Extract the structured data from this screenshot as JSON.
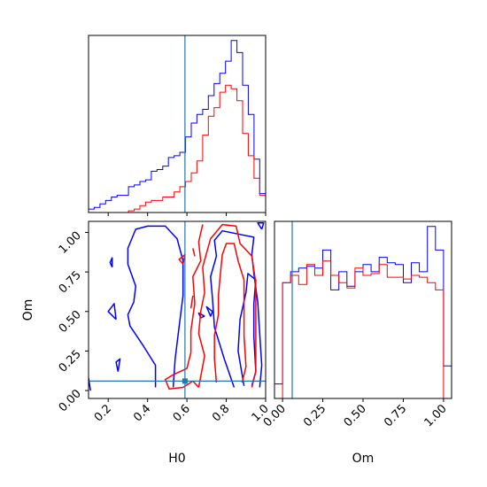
{
  "chart_data": [
    {
      "panel": "H0 marginal",
      "type": "histogram",
      "x_range": [
        0.1,
        1.0
      ],
      "x_ticks": [
        0.2,
        0.4,
        0.6,
        0.8,
        1.0
      ],
      "y_ticks": [],
      "truth": 0.59,
      "colors": {
        "blue": "#0000ff",
        "red": "#ff0000",
        "truth": "#1f77b4"
      },
      "bin_edges": [
        0.1,
        0.129,
        0.158,
        0.187,
        0.216,
        0.245,
        0.274,
        0.303,
        0.332,
        0.361,
        0.39,
        0.419,
        0.448,
        0.477,
        0.506,
        0.535,
        0.564,
        0.593,
        0.622,
        0.651,
        0.68,
        0.709,
        0.738,
        0.767,
        0.796,
        0.825,
        0.854,
        0.883,
        0.912,
        0.941,
        0.97,
        1.0
      ],
      "series": [
        {
          "color": "blue",
          "values": [
            0.02,
            0.03,
            0.05,
            0.07,
            0.09,
            0.1,
            0.1,
            0.15,
            0.16,
            0.18,
            0.19,
            0.24,
            0.25,
            0.27,
            0.32,
            0.33,
            0.35,
            0.44,
            0.52,
            0.57,
            0.6,
            0.68,
            0.75,
            0.81,
            0.88,
            1.0,
            0.93,
            0.74,
            0.57,
            0.31,
            0.11
          ]
        },
        {
          "color": "red",
          "values": [
            0,
            0,
            0,
            0,
            0,
            0,
            0,
            0.01,
            0.02,
            0.04,
            0.06,
            0.07,
            0.07,
            0.09,
            0.09,
            0.12,
            0.15,
            0.18,
            0.23,
            0.3,
            0.45,
            0.56,
            0.61,
            0.7,
            0.74,
            0.72,
            0.65,
            0.46,
            0.33,
            0.2,
            0.1
          ]
        }
      ]
    },
    {
      "panel": "H0 vs Om",
      "type": "contour",
      "x_range": [
        0.1,
        1.0
      ],
      "y_range": [
        -0.05,
        1.07
      ],
      "x_ticks": [
        0.2,
        0.4,
        0.6,
        0.8,
        1.0
      ],
      "y_ticks": [
        0.0,
        0.25,
        0.5,
        0.75,
        1.0
      ],
      "xlabel": "H0",
      "ylabel": "Om",
      "truth": {
        "x": 0.59,
        "y": 0.06
      },
      "contours": [
        {
          "color": "blue",
          "points": [
            [
              0.44,
              0.02
            ],
            [
              0.44,
              0.16
            ],
            [
              0.38,
              0.28
            ],
            [
              0.31,
              0.41
            ],
            [
              0.3,
              0.48
            ],
            [
              0.33,
              0.56
            ],
            [
              0.34,
              0.66
            ],
            [
              0.3,
              0.8
            ],
            [
              0.3,
              0.9
            ],
            [
              0.34,
              1.02
            ],
            [
              0.4,
              1.04
            ],
            [
              0.49,
              1.04
            ],
            [
              0.55,
              0.96
            ],
            [
              0.58,
              0.82
            ],
            [
              0.58,
              0.6
            ],
            [
              0.56,
              0.4
            ],
            [
              0.54,
              0.2
            ],
            [
              0.53,
              0.02
            ]
          ]
        },
        {
          "color": "blue",
          "points": [
            [
              0.84,
              0.02
            ],
            [
              0.79,
              0.2
            ],
            [
              0.74,
              0.4
            ],
            [
              0.73,
              0.58
            ],
            [
              0.72,
              0.72
            ],
            [
              0.75,
              0.85
            ],
            [
              0.74,
              0.95
            ],
            [
              0.78,
              1.01
            ],
            [
              0.86,
              0.99
            ],
            [
              0.94,
              0.97
            ],
            [
              0.93,
              0.86
            ],
            [
              0.94,
              0.74
            ],
            [
              0.96,
              0.56
            ],
            [
              0.97,
              0.36
            ],
            [
              0.98,
              0.16
            ],
            [
              0.97,
              0.02
            ]
          ]
        },
        {
          "color": "blue",
          "points": [
            [
              0.89,
              0.03
            ],
            [
              0.86,
              0.25
            ],
            [
              0.87,
              0.45
            ],
            [
              0.9,
              0.62
            ],
            [
              0.91,
              0.74
            ],
            [
              0.95,
              0.7
            ],
            [
              0.94,
              0.55
            ],
            [
              0.94,
              0.34
            ],
            [
              0.95,
              0.12
            ],
            [
              0.93,
              0.03
            ]
          ]
        },
        {
          "color": "blue",
          "points": [
            [
              0.24,
              0.45
            ],
            [
              0.2,
              0.5
            ],
            [
              0.23,
              0.55
            ],
            [
              0.24,
              0.45
            ]
          ]
        },
        {
          "color": "blue",
          "points": [
            [
              0.22,
              0.78
            ],
            [
              0.22,
              0.84
            ],
            [
              0.21,
              0.81
            ],
            [
              0.22,
              0.78
            ]
          ]
        },
        {
          "color": "blue",
          "points": [
            [
              0.25,
              0.12
            ],
            [
              0.26,
              0.2
            ],
            [
              0.24,
              0.18
            ],
            [
              0.25,
              0.12
            ]
          ]
        },
        {
          "color": "blue",
          "points": [
            [
              0.73,
              0.5
            ],
            [
              0.7,
              0.53
            ],
            [
              0.72,
              0.47
            ],
            [
              0.73,
              0.5
            ]
          ]
        },
        {
          "color": "blue",
          "points": [
            [
              0.69,
              0.47
            ],
            [
              0.66,
              0.49
            ],
            [
              0.67,
              0.46
            ],
            [
              0.69,
              0.47
            ]
          ]
        },
        {
          "color": "blue",
          "points": [
            [
              0.1,
              0.08
            ],
            [
              0.11,
              0.0
            ]
          ]
        },
        {
          "color": "blue",
          "points": [
            [
              0.98,
              1.02
            ],
            [
              0.96,
              1.06
            ],
            [
              0.99,
              1.06
            ],
            [
              0.98,
              1.02
            ]
          ]
        },
        {
          "color": "red",
          "points": [
            [
              0.66,
              0.02
            ],
            [
              0.69,
              0.22
            ],
            [
              0.66,
              0.36
            ],
            [
              0.67,
              0.5
            ],
            [
              0.69,
              0.62
            ],
            [
              0.68,
              0.78
            ],
            [
              0.7,
              0.87
            ],
            [
              0.72,
              0.96
            ],
            [
              0.78,
              1.05
            ],
            [
              0.85,
              1.04
            ],
            [
              0.87,
              0.93
            ],
            [
              0.93,
              0.85
            ],
            [
              0.95,
              0.68
            ],
            [
              0.95,
              0.5
            ],
            [
              0.95,
              0.3
            ],
            [
              0.95,
              0.12
            ],
            [
              0.93,
              0.02
            ]
          ]
        },
        {
          "color": "red",
          "points": [
            [
              0.68,
              1.05
            ],
            [
              0.66,
              0.94
            ],
            [
              0.67,
              0.82
            ],
            [
              0.63,
              0.72
            ],
            [
              0.64,
              0.55
            ],
            [
              0.62,
              0.38
            ],
            [
              0.62,
              0.24
            ],
            [
              0.6,
              0.14
            ],
            [
              0.53,
              0.1
            ],
            [
              0.49,
              0.07
            ],
            [
              0.51,
              0.01
            ],
            [
              0.58,
              0.02
            ],
            [
              0.63,
              0.06
            ],
            [
              0.66,
              0.02
            ]
          ]
        },
        {
          "color": "red",
          "points": [
            [
              0.75,
              0.05
            ],
            [
              0.74,
              0.2
            ],
            [
              0.74,
              0.35
            ],
            [
              0.76,
              0.48
            ],
            [
              0.76,
              0.6
            ],
            [
              0.77,
              0.74
            ],
            [
              0.78,
              0.86
            ],
            [
              0.8,
              0.93
            ],
            [
              0.84,
              0.93
            ],
            [
              0.86,
              0.82
            ],
            [
              0.89,
              0.7
            ],
            [
              0.89,
              0.55
            ],
            [
              0.89,
              0.35
            ],
            [
              0.9,
              0.15
            ],
            [
              0.88,
              0.05
            ]
          ]
        },
        {
          "color": "red",
          "points": [
            [
              0.58,
              0.8
            ],
            [
              0.56,
              0.83
            ],
            [
              0.59,
              0.86
            ],
            [
              0.58,
              0.8
            ]
          ]
        },
        {
          "color": "red",
          "points": [
            [
              0.62,
              0.52
            ],
            [
              0.63,
              0.6
            ]
          ]
        },
        {
          "color": "red",
          "points": [
            [
              0.64,
              0.85
            ],
            [
              0.63,
              0.9
            ]
          ]
        }
      ]
    },
    {
      "panel": "Om marginal",
      "type": "histogram",
      "x_range": [
        -0.05,
        1.05
      ],
      "x_ticks": [
        0.0,
        0.25,
        0.5,
        0.75,
        1.0
      ],
      "xlabel": "Om",
      "truth": 0.06,
      "bin_edges": [
        -0.05,
        0.0,
        0.05,
        0.1,
        0.15,
        0.2,
        0.25,
        0.3,
        0.35,
        0.4,
        0.45,
        0.5,
        0.55,
        0.6,
        0.65,
        0.7,
        0.75,
        0.8,
        0.85,
        0.9,
        0.95,
        1.0,
        1.05
      ],
      "series": [
        {
          "color": "blue",
          "values": [
            0.08,
            0.64,
            0.7,
            0.72,
            0.73,
            0.72,
            0.82,
            0.6,
            0.7,
            0.62,
            0.7,
            0.74,
            0.7,
            0.78,
            0.75,
            0.74,
            0.64,
            0.75,
            0.7,
            0.95,
            0.82,
            0.18
          ]
        },
        {
          "color": "red",
          "values": [
            0,
            0.64,
            0.68,
            0.63,
            0.74,
            0.68,
            0.76,
            0.68,
            0.64,
            0.61,
            0.72,
            0.68,
            0.69,
            0.74,
            0.67,
            0.67,
            0.66,
            0.68,
            0.67,
            0.64,
            0.6,
            0
          ]
        }
      ]
    }
  ]
}
